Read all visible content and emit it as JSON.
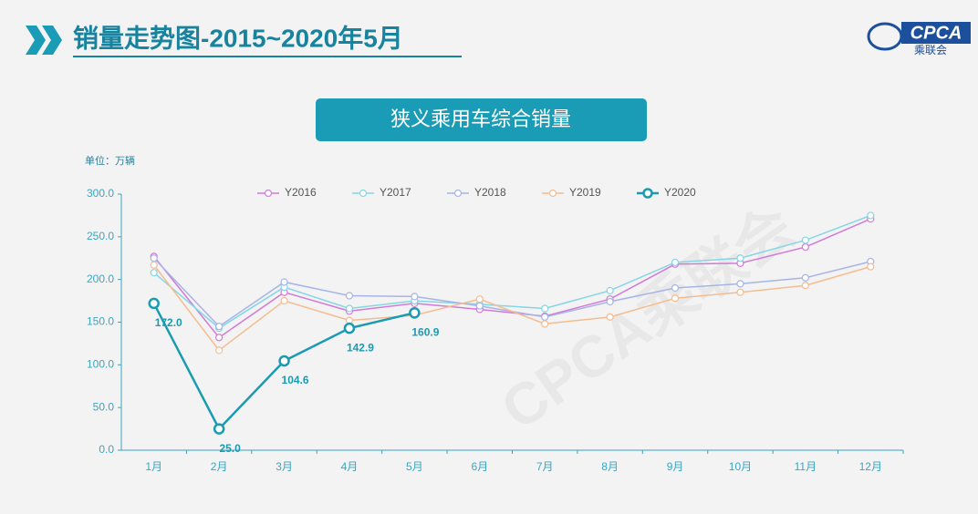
{
  "header": {
    "title": "销量走势图-2015~2020年5月",
    "logo_text": "CPCA",
    "logo_subtext": "乘联会"
  },
  "chart_data": {
    "type": "line",
    "title": "狭义乘用车综合销量",
    "unit": "单位：万辆",
    "watermark": "CPCA乘联会",
    "categories": [
      "1月",
      "2月",
      "3月",
      "4月",
      "5月",
      "6月",
      "7月",
      "8月",
      "9月",
      "10月",
      "11月",
      "12月"
    ],
    "series": [
      {
        "name": "Y2016",
        "color": "#d27ad8",
        "values": [
          227,
          132,
          185,
          163,
          172,
          165,
          157,
          177,
          218,
          219,
          238,
          271
        ]
      },
      {
        "name": "Y2017",
        "color": "#84d6e6",
        "values": [
          208,
          143,
          191,
          166,
          175,
          171,
          166,
          187,
          220,
          225,
          246,
          275
        ]
      },
      {
        "name": "Y2018",
        "color": "#a7b4e6",
        "values": [
          225,
          145,
          197,
          181,
          180,
          169,
          156,
          174,
          190,
          195,
          202,
          221
        ]
      },
      {
        "name": "Y2019",
        "color": "#f4bc90",
        "values": [
          217,
          117,
          175,
          152,
          158,
          177,
          148,
          156,
          178,
          185,
          193,
          215
        ]
      },
      {
        "name": "Y2020",
        "color": "#1b9bb1",
        "values": [
          172.0,
          25.0,
          104.6,
          142.9,
          160.9,
          null,
          null,
          null,
          null,
          null,
          null,
          null
        ],
        "value_labels": [
          "172.0",
          "25.0",
          "104.6",
          "142.9",
          "160.9",
          null,
          null,
          null,
          null,
          null,
          null,
          null
        ]
      }
    ],
    "ylim": [
      0,
      300
    ],
    "yticks": [
      {
        "value": 0,
        "label": "0.0"
      },
      {
        "value": 50,
        "label": "50.0"
      },
      {
        "value": 100,
        "label": "100.0"
      },
      {
        "value": 150,
        "label": "150.0"
      },
      {
        "value": 200,
        "label": "200.0"
      },
      {
        "value": 250,
        "label": "250.0"
      },
      {
        "value": 300,
        "label": "300.0"
      }
    ],
    "legend": "top"
  }
}
